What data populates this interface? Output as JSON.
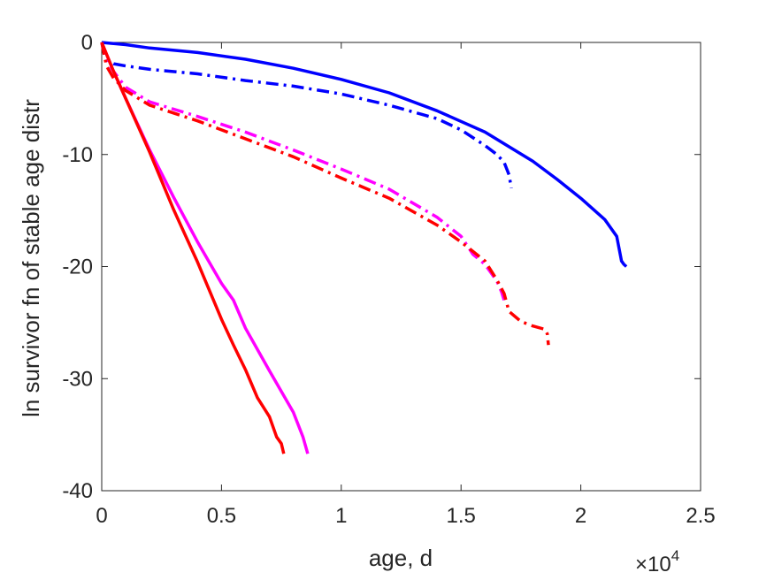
{
  "chart_data": {
    "type": "line",
    "title": "",
    "xlabel": "age, d",
    "ylabel": "ln survivor fn of stable age distr",
    "x_exponent_label": {
      "base": "×10",
      "exp": "4"
    },
    "xlim": [
      0,
      25000
    ],
    "ylim": [
      -40,
      0
    ],
    "x_ticks": [
      0,
      5000,
      10000,
      15000,
      20000,
      25000
    ],
    "x_tick_labels": [
      "0",
      "0.5",
      "1",
      "1.5",
      "2",
      "2.5"
    ],
    "y_ticks": [
      0,
      -10,
      -20,
      -30,
      -40
    ],
    "y_tick_labels": [
      "0",
      "-10",
      "-20",
      "-30",
      "-40"
    ],
    "grid": false,
    "legend": "none",
    "series": [
      {
        "color": "#0000ff",
        "style": "solid",
        "x": [
          0,
          1000,
          2000,
          4000,
          6000,
          8000,
          10000,
          12000,
          14000,
          16000,
          18000,
          19000,
          20000,
          21000,
          21500,
          21700,
          21800,
          21900
        ],
        "y": [
          0,
          -0.2,
          -0.5,
          -0.9,
          -1.5,
          -2.3,
          -3.3,
          -4.5,
          -6.1,
          -8.0,
          -10.6,
          -12.2,
          -13.9,
          -15.8,
          -17.3,
          -19.5,
          -19.8,
          -20.0
        ]
      },
      {
        "color": "#0000ff",
        "style": "dashdot",
        "x": [
          0,
          200,
          500,
          1000,
          2000,
          4000,
          6000,
          8000,
          10000,
          12000,
          14000,
          15000,
          16000,
          16500,
          16800,
          17000,
          17100
        ],
        "y": [
          0,
          -1.5,
          -1.9,
          -2.1,
          -2.4,
          -2.8,
          -3.4,
          -3.9,
          -4.6,
          -5.6,
          -6.8,
          -7.8,
          -9.2,
          -10.0,
          -10.7,
          -11.8,
          -13.0
        ]
      },
      {
        "color": "#ff00ff",
        "style": "dashdot",
        "x": [
          0,
          200,
          500,
          1000,
          2000,
          4000,
          6000,
          8000,
          10000,
          12000,
          14000,
          15000,
          15500,
          16000,
          16500,
          16700,
          16800
        ],
        "y": [
          0,
          -1.6,
          -2.6,
          -4.0,
          -5.3,
          -6.6,
          -8.0,
          -9.6,
          -11.3,
          -13.1,
          -15.6,
          -17.3,
          -18.9,
          -19.8,
          -21.3,
          -22.3,
          -23.0
        ]
      },
      {
        "color": "#ff0000",
        "style": "dashdot",
        "x": [
          0,
          200,
          500,
          1000,
          2000,
          4000,
          6000,
          8000,
          10000,
          12000,
          14000,
          15000,
          16000,
          16500,
          16800,
          17000,
          17500,
          18000,
          18500,
          18600,
          18650
        ],
        "y": [
          0,
          -2.1,
          -3.2,
          -4.3,
          -5.6,
          -7.0,
          -8.6,
          -10.2,
          -12.1,
          -13.9,
          -16.3,
          -17.8,
          -19.5,
          -21.2,
          -22.4,
          -24.0,
          -24.9,
          -25.3,
          -25.6,
          -26.0,
          -27.0
        ]
      },
      {
        "color": "#ff00ff",
        "style": "solid",
        "x": [
          0,
          500,
          1000,
          2000,
          3000,
          4000,
          5000,
          5500,
          6000,
          7000,
          8000,
          8400,
          8600
        ],
        "y": [
          0,
          -2.6,
          -5.0,
          -9.6,
          -13.8,
          -17.8,
          -21.5,
          -23.0,
          -25.5,
          -29.3,
          -33.0,
          -35.2,
          -36.7
        ]
      },
      {
        "color": "#ff0000",
        "style": "solid",
        "x": [
          0,
          500,
          1000,
          2000,
          3000,
          4000,
          5000,
          5500,
          6000,
          6500,
          7000,
          7300,
          7500,
          7600
        ],
        "y": [
          0,
          -2.6,
          -5.0,
          -9.8,
          -14.9,
          -19.6,
          -24.7,
          -27.0,
          -29.2,
          -31.7,
          -33.4,
          -35.2,
          -35.8,
          -36.7
        ]
      }
    ]
  }
}
